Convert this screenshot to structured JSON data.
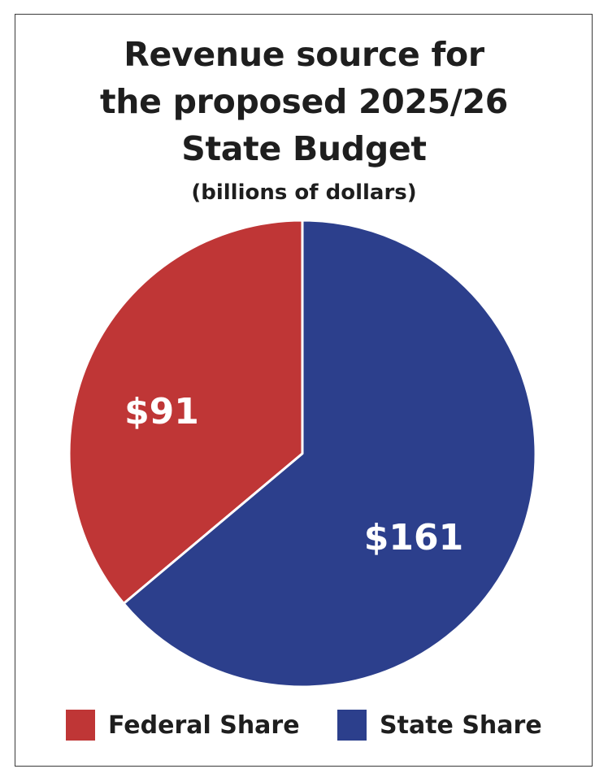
{
  "chart_data": {
    "type": "pie",
    "title_lines": [
      "Revenue source for",
      "the proposed 2025/26",
      "State Budget"
    ],
    "subtitle": "(billions of dollars)",
    "slices": [
      {
        "name": "Federal Share",
        "value": 91,
        "label": "$91",
        "color": "#bf3636"
      },
      {
        "name": "State Share",
        "value": 161,
        "label": "$161",
        "color": "#2c3f8c"
      }
    ],
    "start": "12 o'clock",
    "direction": "counterclockwise for Federal Share, clockwise for State Share",
    "legend_position": "bottom",
    "slice_border_color": "#ffffff"
  }
}
